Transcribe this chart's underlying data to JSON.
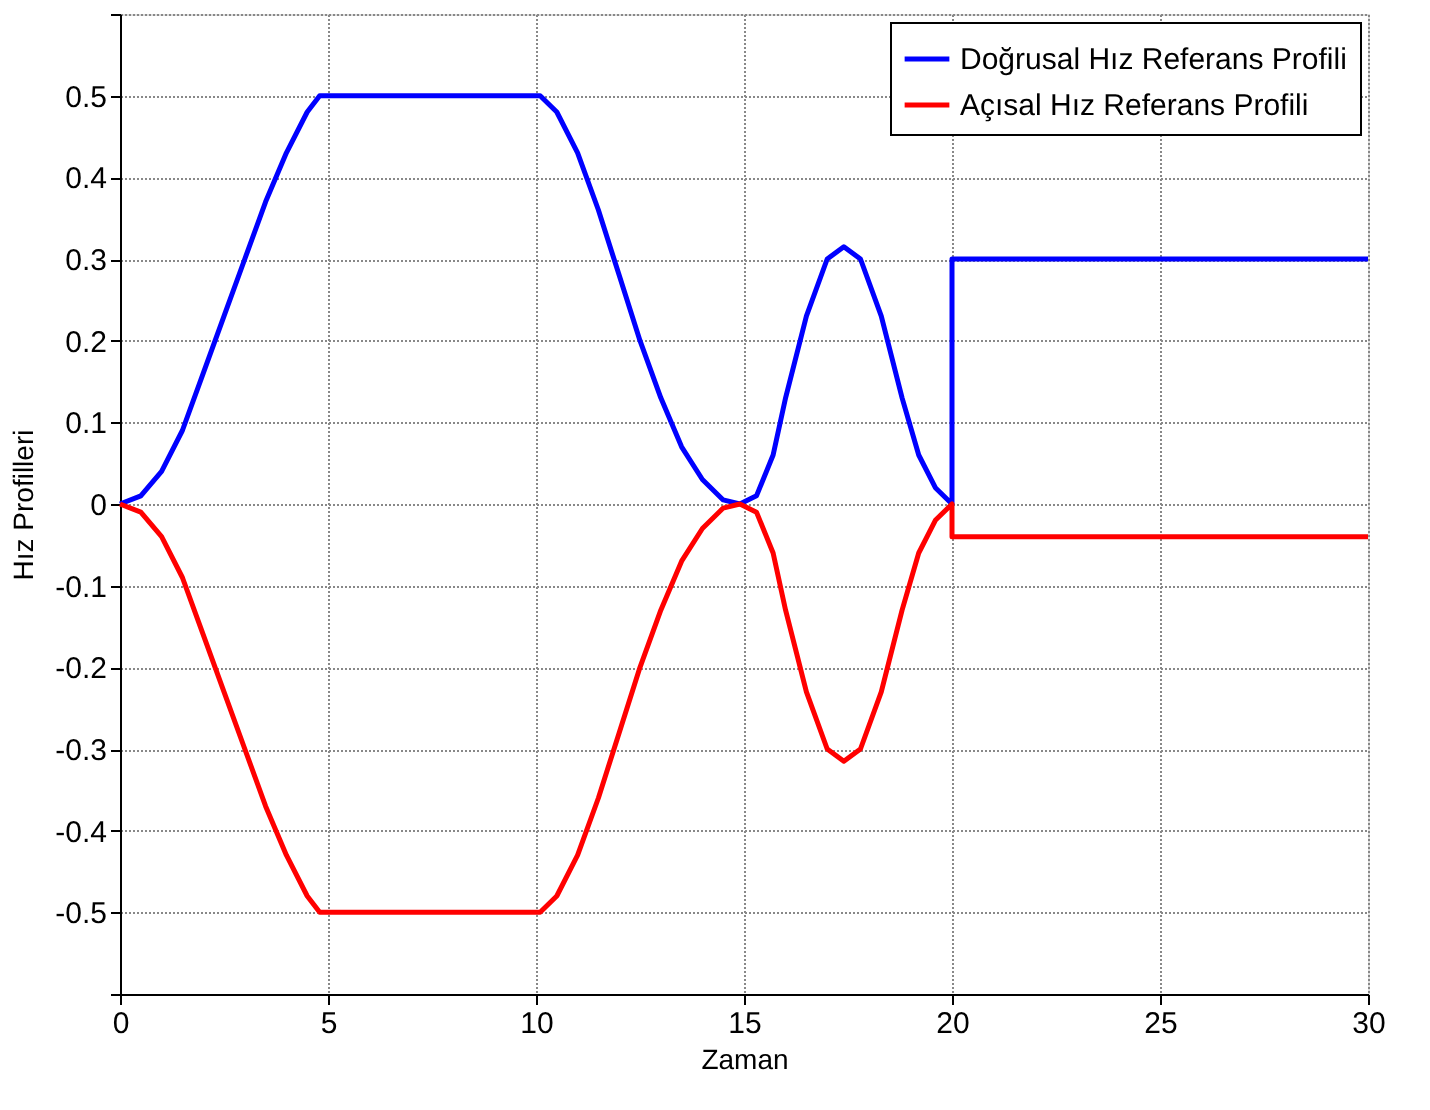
{
  "chart_data": {
    "type": "line",
    "xlabel": "Zaman",
    "ylabel": "Hız Profilleri",
    "xlim": [
      0,
      30
    ],
    "xticks": [
      0,
      5,
      10,
      15,
      20,
      25,
      30
    ],
    "ylim": [
      -0.6,
      0.6
    ],
    "yticks": [
      {
        "value": -0.6,
        "label": null
      },
      -0.5,
      -0.4,
      -0.3,
      -0.2,
      -0.1,
      0,
      0.1,
      0.2,
      0.3,
      0.4,
      0.5,
      {
        "value": 0.6,
        "label": null
      }
    ],
    "grid": true,
    "legend": "top right",
    "line_style": "solid",
    "marker": "none",
    "series": [
      {
        "name": "Doğrusal Hız Referans Profili",
        "color": "#0000ff",
        "x": [
          0,
          0.5,
          1,
          1.5,
          2,
          2.5,
          3,
          3.5,
          4,
          4.5,
          4.8,
          10.1,
          10.5,
          11,
          11.5,
          12,
          12.5,
          13,
          13.5,
          14,
          14.5,
          14.9,
          15.3,
          15.7,
          16,
          16.5,
          17,
          17.4,
          17.8,
          18.3,
          18.8,
          19.2,
          19.6,
          20,
          20,
          30
        ],
        "values": [
          0,
          0.01,
          0.04,
          0.09,
          0.16,
          0.23,
          0.3,
          0.37,
          0.43,
          0.48,
          0.5,
          0.5,
          0.48,
          0.43,
          0.36,
          0.28,
          0.2,
          0.13,
          0.07,
          0.03,
          0.005,
          0,
          0.01,
          0.06,
          0.13,
          0.23,
          0.3,
          0.315,
          0.3,
          0.23,
          0.13,
          0.06,
          0.02,
          0,
          0.3,
          0.3
        ]
      },
      {
        "name": "Açısal Hız Referans Profili",
        "color": "#ff0000",
        "x": [
          0,
          0.5,
          1,
          1.5,
          2,
          2.5,
          3,
          3.5,
          4,
          4.5,
          4.8,
          10.1,
          10.5,
          11,
          11.5,
          12,
          12.5,
          13,
          13.5,
          14,
          14.5,
          14.9,
          15.3,
          15.7,
          16,
          16.5,
          17,
          17.4,
          17.8,
          18.3,
          18.8,
          19.2,
          19.6,
          20,
          20,
          30
        ],
        "values": [
          0,
          -0.01,
          -0.04,
          -0.09,
          -0.16,
          -0.23,
          -0.3,
          -0.37,
          -0.43,
          -0.48,
          -0.5,
          -0.5,
          -0.48,
          -0.43,
          -0.36,
          -0.28,
          -0.2,
          -0.13,
          -0.07,
          -0.03,
          -0.005,
          0,
          -0.01,
          -0.06,
          -0.13,
          -0.23,
          -0.3,
          -0.315,
          -0.3,
          -0.23,
          -0.13,
          -0.06,
          -0.02,
          0,
          -0.04,
          -0.04
        ]
      }
    ]
  }
}
